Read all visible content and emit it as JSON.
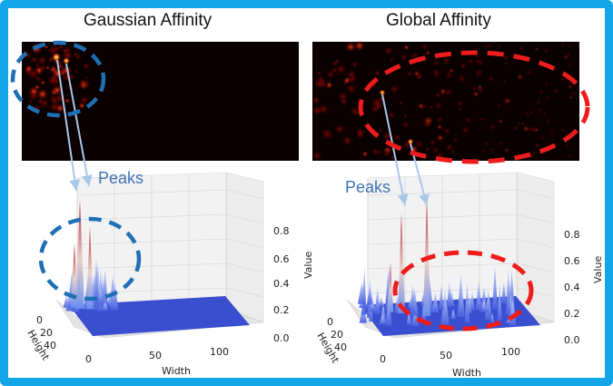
{
  "panels": [
    {
      "title": "Gaussian Affinity",
      "peaks_label": "Peaks",
      "z_ticks": [
        "0.8",
        "0.6",
        "0.4",
        "0.2",
        "0.0"
      ],
      "height_ticks": [
        "0",
        "20",
        "40"
      ],
      "width_ticks": [
        "0",
        "50",
        "100"
      ],
      "z_axis_label": "Value",
      "height_axis_label": "Height",
      "width_axis_label": "Width"
    },
    {
      "title": "Global Affinity",
      "peaks_label": "Peaks",
      "z_ticks": [
        "0.8",
        "0.6",
        "0.4",
        "0.2",
        "0.0"
      ],
      "height_ticks": [
        "0",
        "20",
        "40"
      ],
      "width_ticks": [
        "0",
        "50",
        "100"
      ],
      "z_axis_label": "Value",
      "height_axis_label": "Height",
      "width_axis_label": "Width"
    }
  ],
  "colors": {
    "frame": "#12a6e8",
    "blue_annotation": "#1f6fb5",
    "red_annotation": "#ee1c1c",
    "arrow": "#a8c8e8",
    "heatmap_bg": "#0a0000",
    "surface_floor": "#3a4fd0",
    "peak_red": "#b2182b"
  }
}
